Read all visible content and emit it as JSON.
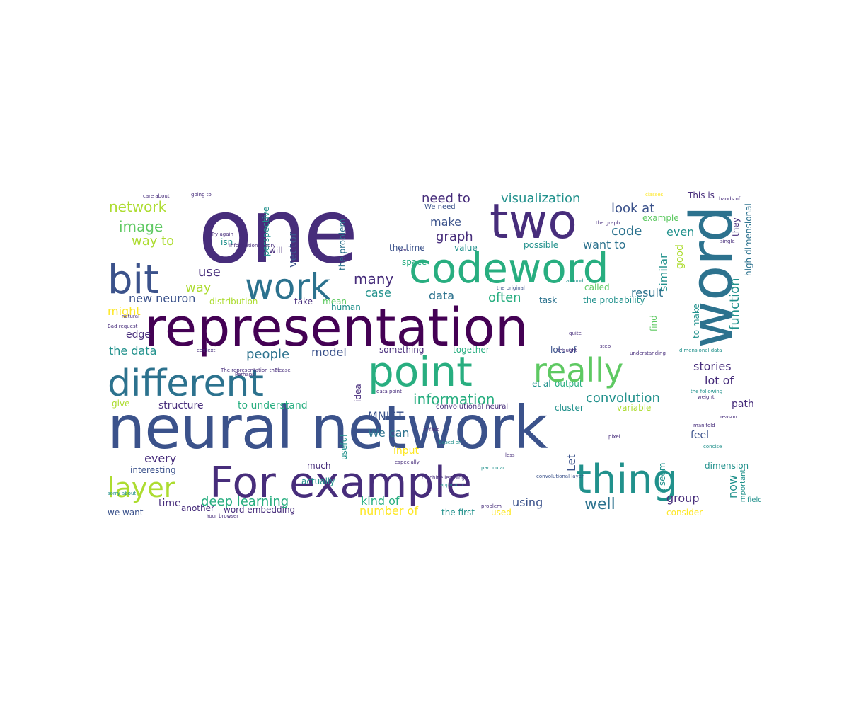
{
  "palette": {
    "dark_purple": "#440154",
    "indigo": "#472d7b",
    "blue": "#3b528b",
    "steel_blue": "#2c728e",
    "teal": "#21918c",
    "green_teal": "#28ae80",
    "green": "#5ec962",
    "lime": "#addc30",
    "yellow": "#fde725"
  },
  "words": [
    {
      "text": "one",
      "color": "#472d7b"
    },
    {
      "text": "two",
      "color": "#472d7b"
    },
    {
      "text": "word",
      "color": "#2c728e"
    },
    {
      "text": "codeword",
      "color": "#28ae80"
    },
    {
      "text": "bit",
      "color": "#3b528b"
    },
    {
      "text": "work",
      "color": "#2c728e"
    },
    {
      "text": "representation",
      "color": "#440154"
    },
    {
      "text": "different",
      "color": "#2c728e"
    },
    {
      "text": "point",
      "color": "#28ae80"
    },
    {
      "text": "really",
      "color": "#5ec962"
    },
    {
      "text": "neural network",
      "color": "#3b528b"
    },
    {
      "text": "For example",
      "color": "#472d7b"
    },
    {
      "text": "thing",
      "color": "#21918c"
    },
    {
      "text": "layer",
      "color": "#addc30"
    },
    {
      "text": "network",
      "color": "#addc30"
    },
    {
      "text": "image",
      "color": "#5ec962"
    },
    {
      "text": "way to",
      "color": "#addc30"
    },
    {
      "text": "use",
      "color": "#472d7b"
    },
    {
      "text": "way",
      "color": "#addc30"
    },
    {
      "text": "new neuron",
      "color": "#3b528b"
    },
    {
      "text": "might",
      "color": "#fde725"
    },
    {
      "text": "edge",
      "color": "#472d7b"
    },
    {
      "text": "the data",
      "color": "#21918c"
    },
    {
      "text": "need to",
      "color": "#472d7b"
    },
    {
      "text": "visualization",
      "color": "#21918c"
    },
    {
      "text": "look at",
      "color": "#3b528b"
    },
    {
      "text": "make",
      "color": "#3b528b"
    },
    {
      "text": "graph",
      "color": "#472d7b"
    },
    {
      "text": "code",
      "color": "#2c728e"
    },
    {
      "text": "even",
      "color": "#21918c"
    },
    {
      "text": "want to",
      "color": "#2c728e"
    },
    {
      "text": "similar",
      "color": "#21918c"
    },
    {
      "text": "good",
      "color": "#addc30"
    },
    {
      "text": "many",
      "color": "#472d7b"
    },
    {
      "text": "case",
      "color": "#21918c"
    },
    {
      "text": "data",
      "color": "#2c728e"
    },
    {
      "text": "often",
      "color": "#28ae80"
    },
    {
      "text": "result",
      "color": "#2c728e"
    },
    {
      "text": "function",
      "color": "#21918c"
    },
    {
      "text": "people",
      "color": "#2c728e"
    },
    {
      "text": "model",
      "color": "#3b528b"
    },
    {
      "text": "stories",
      "color": "#472d7b"
    },
    {
      "text": "lot of",
      "color": "#472d7b"
    },
    {
      "text": "information",
      "color": "#28ae80"
    },
    {
      "text": "convolution",
      "color": "#21918c"
    },
    {
      "text": "structure",
      "color": "#472d7b"
    },
    {
      "text": "to understand",
      "color": "#28ae80"
    },
    {
      "text": "MNIST",
      "color": "#3b528b"
    },
    {
      "text": "We can",
      "color": "#2c728e"
    },
    {
      "text": "input",
      "color": "#fde725"
    },
    {
      "text": "every",
      "color": "#472d7b"
    },
    {
      "text": "interesting",
      "color": "#3b528b"
    },
    {
      "text": "much",
      "color": "#472d7b"
    },
    {
      "text": "actually",
      "color": "#21918c"
    },
    {
      "text": "deep learning",
      "color": "#28ae80"
    },
    {
      "text": "kind of",
      "color": "#28ae80"
    },
    {
      "text": "number of",
      "color": "#fde725"
    },
    {
      "text": "using",
      "color": "#3b528b"
    },
    {
      "text": "well",
      "color": "#2c728e"
    },
    {
      "text": "group",
      "color": "#472d7b"
    },
    {
      "text": "now",
      "color": "#21918c"
    },
    {
      "text": "time",
      "color": "#472d7b"
    },
    {
      "text": "feel",
      "color": "#3b528b"
    },
    {
      "text": "path",
      "color": "#472d7b"
    },
    {
      "text": "another",
      "color": "#472d7b"
    },
    {
      "text": "word embedding",
      "color": "#472d7b"
    },
    {
      "text": "we want",
      "color": "#3b528b"
    },
    {
      "text": "the first",
      "color": "#21918c"
    },
    {
      "text": "used",
      "color": "#fde725"
    },
    {
      "text": "consider",
      "color": "#fde725"
    },
    {
      "text": "give",
      "color": "#addc30"
    },
    {
      "text": "vector",
      "color": "#3b528b"
    },
    {
      "text": "isn",
      "color": "#21918c"
    },
    {
      "text": "perspective",
      "color": "#21918c"
    },
    {
      "text": "the problem",
      "color": "#2c728e"
    },
    {
      "text": "the time",
      "color": "#3b528b"
    },
    {
      "text": "value",
      "color": "#21918c"
    },
    {
      "text": "possible",
      "color": "#21918c"
    },
    {
      "text": "the probability",
      "color": "#21918c"
    },
    {
      "text": "task",
      "color": "#2c728e"
    },
    {
      "text": "distribution",
      "color": "#addc30"
    },
    {
      "text": "take",
      "color": "#472d7b"
    },
    {
      "text": "mean",
      "color": "#5ec962"
    },
    {
      "text": "something",
      "color": "#472d7b"
    },
    {
      "text": "together",
      "color": "#28ae80"
    },
    {
      "text": "lots of",
      "color": "#3b528b"
    },
    {
      "text": "to make",
      "color": "#21918c"
    },
    {
      "text": "high dimensional",
      "color": "#2c728e"
    },
    {
      "text": "dimension",
      "color": "#21918c"
    },
    {
      "text": "useful",
      "color": "#21918c"
    },
    {
      "text": "idea",
      "color": "#472d7b"
    },
    {
      "text": "human",
      "color": "#21918c"
    },
    {
      "text": "cluster",
      "color": "#21918c"
    },
    {
      "text": "variable",
      "color": "#addc30"
    },
    {
      "text": "et al",
      "color": "#21918c"
    },
    {
      "text": "output",
      "color": "#28ae80"
    },
    {
      "text": "convolutional neural",
      "color": "#472d7b"
    },
    {
      "text": "space",
      "color": "#28ae80"
    },
    {
      "text": "called",
      "color": "#5ec962"
    },
    {
      "text": "example",
      "color": "#5ec962"
    },
    {
      "text": "find",
      "color": "#5ec962"
    },
    {
      "text": "Let",
      "color": "#3b528b"
    },
    {
      "text": "This is",
      "color": "#472d7b"
    },
    {
      "text": "they",
      "color": "#472d7b"
    },
    {
      "text": "important",
      "color": "#21918c"
    },
    {
      "text": "will",
      "color": "#472d7b"
    },
    {
      "text": "it seem",
      "color": "#21918c"
    },
    {
      "text": "We need",
      "color": "#3b528b"
    },
    {
      "text": "Try again",
      "color": "#472d7b"
    },
    {
      "text": "care about",
      "color": "#472d7b"
    },
    {
      "text": "going to",
      "color": "#472d7b"
    },
    {
      "text": "Bad request",
      "color": "#472d7b"
    },
    {
      "text": "the following",
      "color": "#21918c"
    },
    {
      "text": "machine learning",
      "color": "#472d7b"
    },
    {
      "text": "convolutional layer",
      "color": "#3b528b"
    },
    {
      "text": "The representation that",
      "color": "#472d7b"
    },
    {
      "text": "Please",
      "color": "#472d7b"
    },
    {
      "text": "understanding",
      "color": "#472d7b"
    },
    {
      "text": "dimensional data",
      "color": "#21918c"
    },
    {
      "text": "the original",
      "color": "#3b528b"
    },
    {
      "text": "the graph",
      "color": "#472d7b"
    },
    {
      "text": "In fact",
      "color": "#472d7b"
    },
    {
      "text": "Based on",
      "color": "#21918c"
    },
    {
      "text": "data point",
      "color": "#472d7b"
    },
    {
      "text": "information theory",
      "color": "#472d7b"
    },
    {
      "text": "especially",
      "color": "#472d7b"
    },
    {
      "text": "particular",
      "color": "#21918c"
    },
    {
      "text": "approach",
      "color": "#21918c"
    },
    {
      "text": "sorry about",
      "color": "#21918c"
    },
    {
      "text": "Your browser",
      "color": "#472d7b"
    },
    {
      "text": "field",
      "color": "#21918c"
    },
    {
      "text": "pixel",
      "color": "#472d7b"
    },
    {
      "text": "manifold",
      "color": "#472d7b"
    },
    {
      "text": "weight",
      "color": "#472d7b"
    },
    {
      "text": "reason",
      "color": "#472d7b"
    },
    {
      "text": "quite",
      "color": "#472d7b"
    },
    {
      "text": "single",
      "color": "#472d7b"
    },
    {
      "text": "thought",
      "color": "#472d7b"
    },
    {
      "text": "bands of",
      "color": "#472d7b"
    },
    {
      "text": "classes",
      "color": "#fde725"
    },
    {
      "text": "step",
      "color": "#472d7b"
    },
    {
      "text": "natural",
      "color": "#472d7b"
    },
    {
      "text": "less",
      "color": "#472d7b"
    },
    {
      "text": "part",
      "color": "#472d7b"
    },
    {
      "text": "Perhaps",
      "color": "#472d7b"
    },
    {
      "text": "problem",
      "color": "#472d7b"
    },
    {
      "text": "concise",
      "color": "#21918c"
    },
    {
      "text": "around",
      "color": "#21918c"
    },
    {
      "text": "context",
      "color": "#472d7b"
    }
  ]
}
